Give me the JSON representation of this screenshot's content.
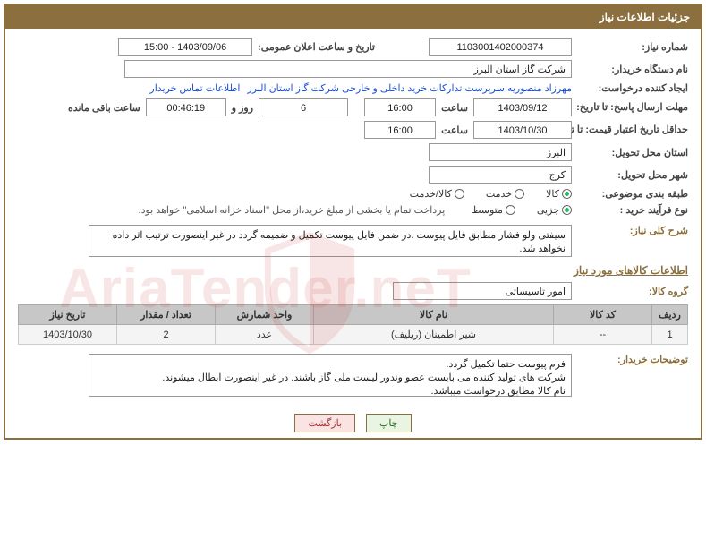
{
  "header": {
    "title": "جزئیات اطلاعات نیاز"
  },
  "fields": {
    "need_number_label": "شماره نیاز:",
    "need_number": "1103001402000374",
    "announce_label": "تاریخ و ساعت اعلان عمومی:",
    "announce_value": "1403/09/06 - 15:00",
    "buyer_org_label": "نام دستگاه خریدار:",
    "buyer_org": "شرکت گاز استان البرز",
    "requester_label": "ایجاد کننده درخواست:",
    "requester": "مهرزاد منصوریه سرپرست تدارکات خرید داخلی و خارجی شرکت گاز استان البرز",
    "buyer_contact": "اطلاعات تماس خریدار",
    "reply_deadline_label": "مهلت ارسال پاسخ: تا تاریخ:",
    "reply_date": "1403/09/12",
    "time_label": "ساعت",
    "reply_time": "16:00",
    "days_remaining": "6",
    "days_word": "روز و",
    "countdown": "00:46:19",
    "remaining_label": "ساعت باقی مانده",
    "validity_label": "حداقل تاریخ اعتبار قیمت: تا تاریخ:",
    "validity_date": "1403/10/30",
    "validity_time": "16:00",
    "delivery_province_label": "استان محل تحویل:",
    "delivery_province": "البرز",
    "delivery_city_label": "شهر محل تحویل:",
    "delivery_city": "کرج",
    "category_label": "طبقه بندی موضوعی:",
    "process_label": "نوع فرآیند خرید :",
    "payment_note": "پرداخت تمام یا بخشی از مبلغ خرید،از محل \"اسناد خزانه اسلامی\" خواهد بود."
  },
  "radios": {
    "category": [
      {
        "label": "کالا",
        "checked": true
      },
      {
        "label": "خدمت",
        "checked": false
      },
      {
        "label": "کالا/خدمت",
        "checked": false
      }
    ],
    "process": [
      {
        "label": "جزیی",
        "checked": true
      },
      {
        "label": "متوسط",
        "checked": false
      }
    ]
  },
  "description": {
    "label": "شرح کلی نیاز:",
    "text": "سیفتی ولو فشار مطابق فایل پیوست .در ضمن فایل پیوست تکمیل و ضمیمه گردد در غیر اینصورت ترتیب اثر داده نخواهد شد."
  },
  "items_section": {
    "title": "اطلاعات کالاهای مورد نیاز",
    "group_label": "گروه کالا:",
    "group_value": "امور تاسیساتی"
  },
  "table": {
    "headers": [
      "ردیف",
      "کد کالا",
      "نام کالا",
      "واحد شمارش",
      "تعداد / مقدار",
      "تاریخ نیاز"
    ],
    "col_widths": [
      "40px",
      "110px",
      "auto",
      "110px",
      "110px",
      "110px"
    ],
    "rows": [
      [
        "1",
        "--",
        "شیر اطمینان (ریلیف)",
        "عدد",
        "2",
        "1403/10/30"
      ]
    ]
  },
  "buyer_notes": {
    "label": "توضیحات خریدار:",
    "text": "فرم پیوست حتما تکمیل گردد.\nشرکت های تولید کننده می بایست عضو وندور لیست ملی گاز باشند. در غیر اینصورت ابطال میشوند.\nنام کالا مطابق درخواست میباشد."
  },
  "buttons": {
    "print": "چاپ",
    "back": "بازگشت"
  },
  "watermark": "AriaTender.neT",
  "colors": {
    "brand": "#8b6f3e",
    "link": "#1a4fd8",
    "th_bg": "#c7c7c7",
    "td_bg": "#f4f4f4"
  }
}
